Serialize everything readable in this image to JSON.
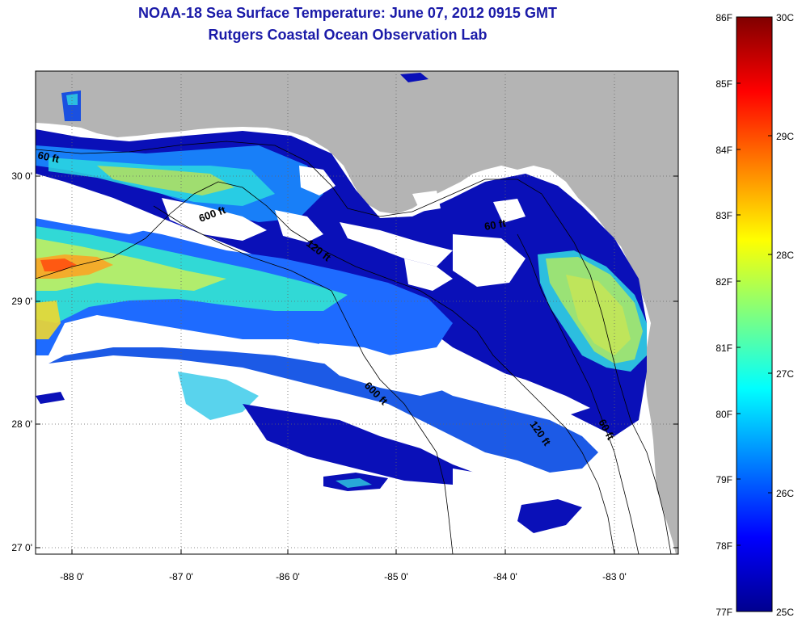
{
  "title": "NOAA-18 Sea Surface Temperature:  June 07, 2012 0915 GMT",
  "subtitle": "Rutgers Coastal Ocean Observation Lab",
  "map": {
    "lon_labels": [
      "-88 0'",
      "-87 0'",
      "-86 0'",
      "-85 0'",
      "-84 0'",
      "-83 0'"
    ],
    "lat_labels": [
      "30 0'",
      "29 0'",
      "28 0'",
      "27 0'"
    ],
    "contour_labels": [
      "60 ft",
      "600 ft",
      "120 ft",
      "60 ft",
      "600 ft",
      "120 ft",
      "60 ft"
    ],
    "land_color": "#b4b4b4",
    "no_data_color": "#ffffff"
  },
  "colorbar": {
    "fahrenheit": [
      "86F",
      "85F",
      "84F",
      "83F",
      "82F",
      "81F",
      "80F",
      "79F",
      "78F",
      "77F"
    ],
    "celsius": [
      "30C",
      "29C",
      "28C",
      "27C",
      "26C",
      "25C"
    ],
    "range_c": [
      25,
      30
    ]
  }
}
